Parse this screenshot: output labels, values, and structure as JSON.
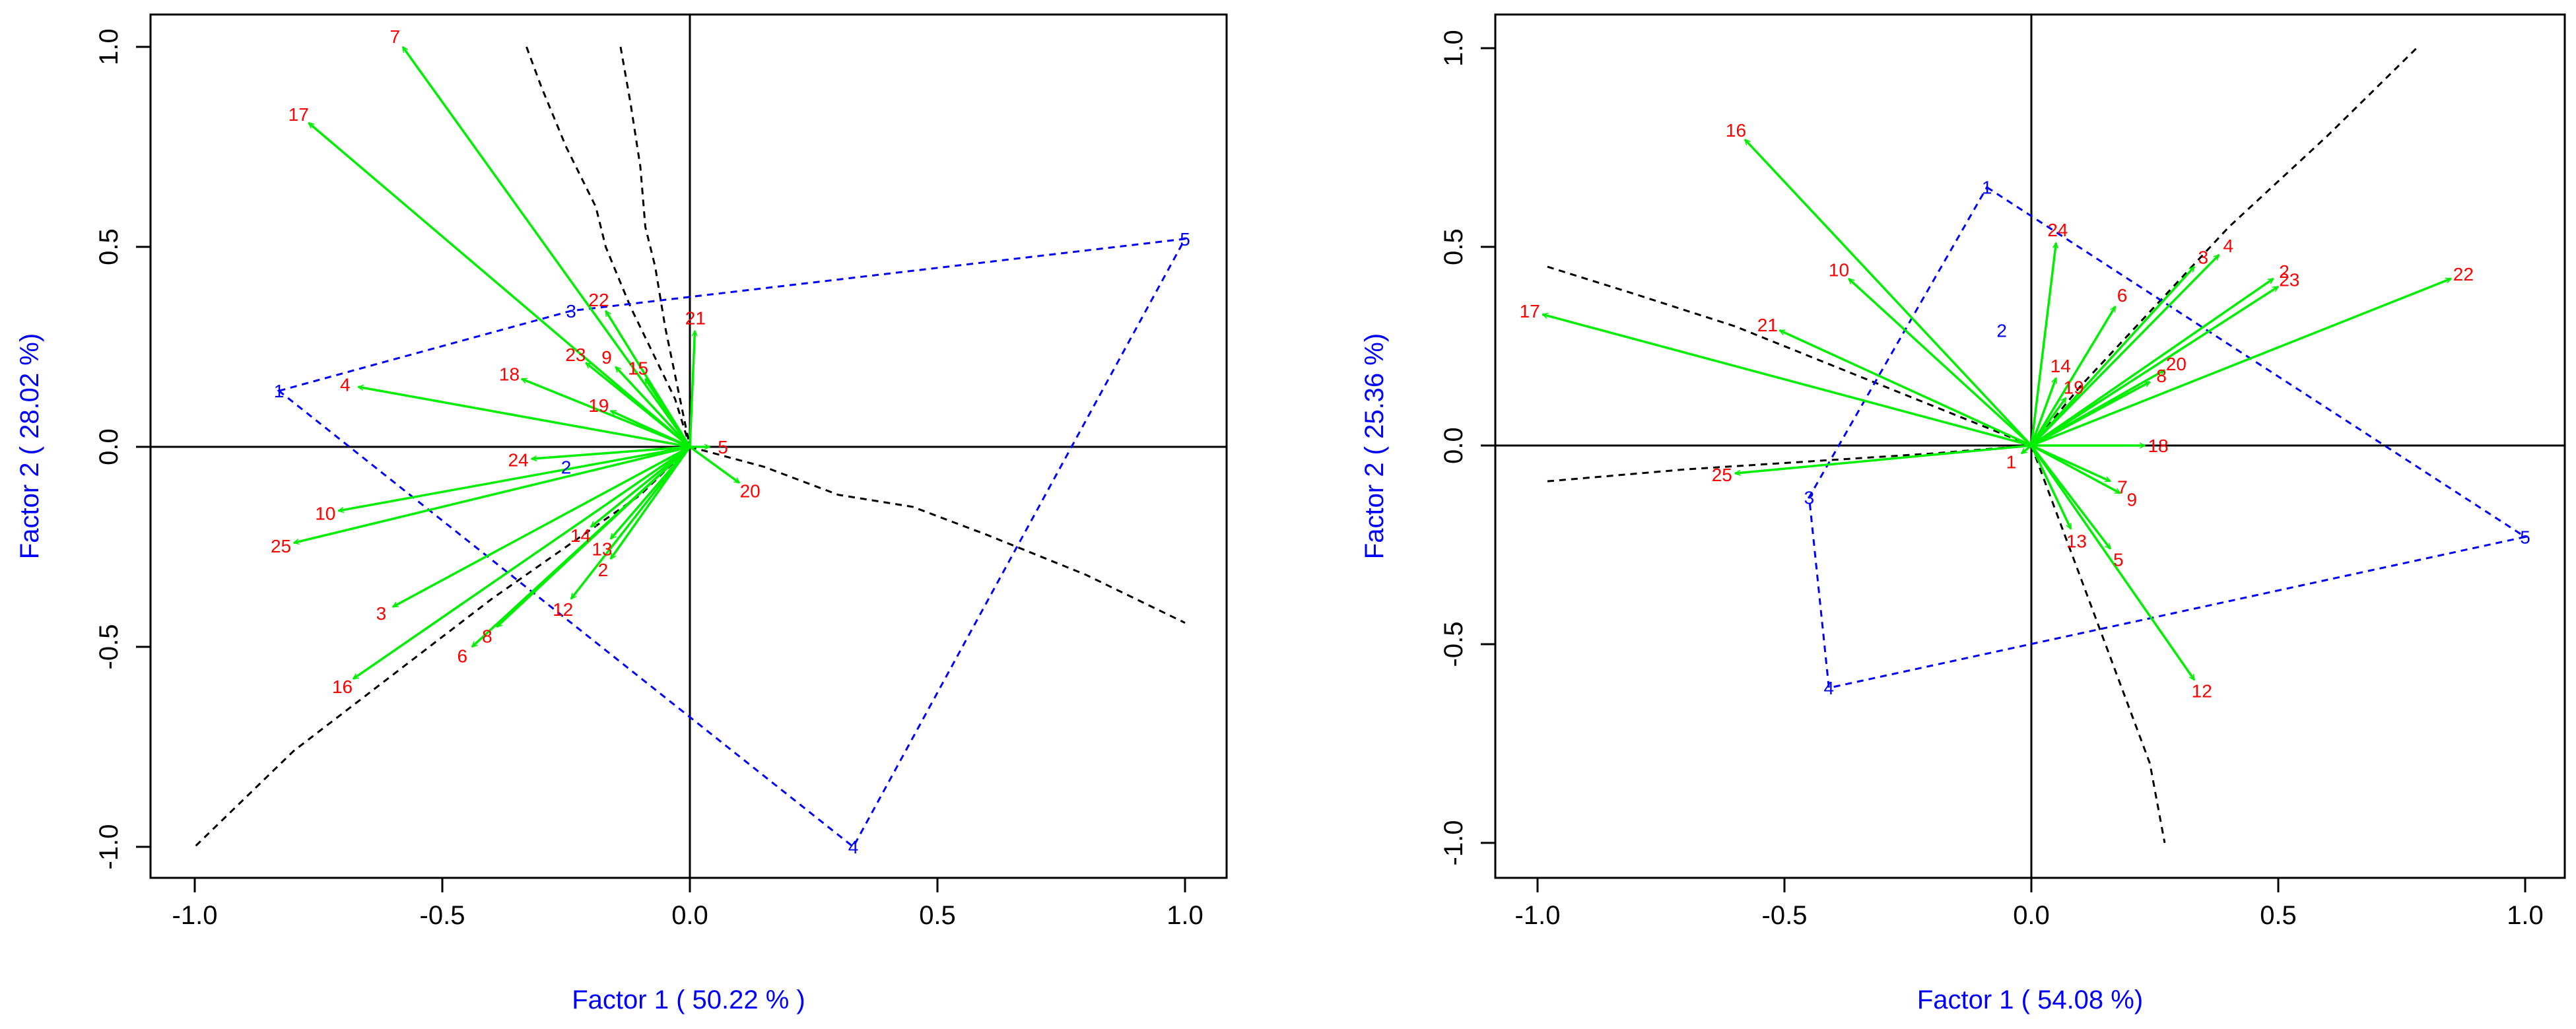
{
  "chart_data": [
    {
      "type": "scatter",
      "subtype": "biplot",
      "xlabel": "Factor 1 ( 50.22 % )",
      "ylabel": "Factor 2 ( 28.02 %)",
      "xlim": [
        -1.0,
        1.0
      ],
      "ylim": [
        -1.0,
        1.0
      ],
      "xticks": [
        "-1.0",
        "-0.5",
        "0.0",
        "0.5",
        "1.0"
      ],
      "yticks": [
        "-1.0",
        "-0.5",
        "0.0",
        "0.5",
        "1.0"
      ],
      "arrows": [
        {
          "label": "7",
          "x": -0.58,
          "y": 1.0
        },
        {
          "label": "17",
          "x": -0.77,
          "y": 0.81
        },
        {
          "label": "22",
          "x": -0.17,
          "y": 0.34
        },
        {
          "label": "23",
          "x": -0.21,
          "y": 0.21
        },
        {
          "label": "9",
          "x": -0.15,
          "y": 0.2
        },
        {
          "label": "15",
          "x": -0.09,
          "y": 0.17
        },
        {
          "label": "21",
          "x": 0.01,
          "y": 0.29
        },
        {
          "label": "18",
          "x": -0.34,
          "y": 0.17
        },
        {
          "label": "4",
          "x": -0.67,
          "y": 0.15
        },
        {
          "label": "19",
          "x": -0.16,
          "y": 0.09
        },
        {
          "label": "24",
          "x": -0.32,
          "y": -0.03
        },
        {
          "label": "5",
          "x": 0.04,
          "y": 0.0
        },
        {
          "label": "20",
          "x": 0.1,
          "y": -0.09
        },
        {
          "label": "10",
          "x": -0.71,
          "y": -0.16
        },
        {
          "label": "25",
          "x": -0.8,
          "y": -0.24
        },
        {
          "label": "14",
          "x": -0.2,
          "y": -0.2
        },
        {
          "label": "13",
          "x": -0.16,
          "y": -0.23
        },
        {
          "label": "2",
          "x": -0.16,
          "y": -0.28
        },
        {
          "label": "12",
          "x": -0.24,
          "y": -0.38
        },
        {
          "label": "3",
          "x": -0.6,
          "y": -0.4
        },
        {
          "label": "8",
          "x": -0.39,
          "y": -0.45
        },
        {
          "label": "6",
          "x": -0.44,
          "y": -0.5
        },
        {
          "label": "16",
          "x": -0.68,
          "y": -0.58
        }
      ],
      "sites": [
        {
          "label": "1",
          "x": -0.83,
          "y": 0.14
        },
        {
          "label": "3",
          "x": -0.24,
          "y": 0.34
        },
        {
          "label": "5",
          "x": 1.0,
          "y": 0.52
        },
        {
          "label": "4",
          "x": 0.33,
          "y": -1.0
        },
        {
          "label": "2",
          "x": -0.25,
          "y": -0.05
        }
      ],
      "hull": [
        "1",
        "3",
        "5",
        "4"
      ],
      "black_curves": [
        [
          [
            -0.33,
            1.0
          ],
          [
            -0.3,
            0.9
          ],
          [
            -0.25,
            0.75
          ],
          [
            -0.19,
            0.6
          ],
          [
            -0.17,
            0.5
          ],
          [
            -0.12,
            0.35
          ],
          [
            -0.03,
            0.12
          ],
          [
            0.0,
            0.0
          ]
        ],
        [
          [
            -0.14,
            1.0
          ],
          [
            -0.12,
            0.86
          ],
          [
            -0.1,
            0.7
          ],
          [
            -0.09,
            0.55
          ],
          [
            -0.07,
            0.45
          ],
          [
            -0.05,
            0.3
          ],
          [
            -0.02,
            0.12
          ],
          [
            0.0,
            0.0
          ]
        ],
        [
          [
            0.0,
            0.0
          ],
          [
            0.15,
            -0.05
          ],
          [
            0.3,
            -0.12
          ],
          [
            0.45,
            -0.15
          ],
          [
            0.6,
            -0.22
          ],
          [
            0.8,
            -0.32
          ],
          [
            1.0,
            -0.44
          ]
        ],
        [
          [
            0.0,
            0.0
          ],
          [
            -0.1,
            -0.12
          ],
          [
            -0.25,
            -0.25
          ],
          [
            -0.4,
            -0.38
          ],
          [
            -0.6,
            -0.57
          ],
          [
            -0.8,
            -0.76
          ],
          [
            -1.0,
            -1.0
          ]
        ]
      ]
    },
    {
      "type": "scatter",
      "subtype": "biplot",
      "xlabel": "Factor 1 ( 54.08 %)",
      "ylabel": "Factor 2 ( 25.36 %)",
      "xlim": [
        -1.0,
        1.0
      ],
      "ylim": [
        -1.0,
        1.0
      ],
      "xticks": [
        "-1.0",
        "-0.5",
        "0.0",
        "0.5",
        "1.0"
      ],
      "yticks": [
        "-1.0",
        "-0.5",
        "0.0",
        "0.5",
        "1.0"
      ],
      "arrows": [
        {
          "label": "16",
          "x": -0.58,
          "y": 0.77
        },
        {
          "label": "10",
          "x": -0.37,
          "y": 0.42
        },
        {
          "label": "21",
          "x": -0.51,
          "y": 0.29
        },
        {
          "label": "17",
          "x": -0.99,
          "y": 0.33
        },
        {
          "label": "25",
          "x": -0.6,
          "y": -0.07
        },
        {
          "label": "24",
          "x": 0.05,
          "y": 0.51
        },
        {
          "label": "4",
          "x": 0.38,
          "y": 0.48
        },
        {
          "label": "3",
          "x": 0.33,
          "y": 0.45
        },
        {
          "label": "2",
          "x": 0.49,
          "y": 0.42
        },
        {
          "label": "23",
          "x": 0.5,
          "y": 0.4
        },
        {
          "label": "6",
          "x": 0.17,
          "y": 0.35
        },
        {
          "label": "22",
          "x": 0.85,
          "y": 0.42
        },
        {
          "label": "20",
          "x": 0.27,
          "y": 0.19
        },
        {
          "label": "8",
          "x": 0.24,
          "y": 0.16
        },
        {
          "label": "14",
          "x": 0.05,
          "y": 0.17
        },
        {
          "label": "19",
          "x": 0.07,
          "y": 0.12
        },
        {
          "label": "18",
          "x": 0.23,
          "y": 0.0
        },
        {
          "label": "7",
          "x": 0.16,
          "y": -0.09
        },
        {
          "label": "9",
          "x": 0.18,
          "y": -0.12
        },
        {
          "label": "13",
          "x": 0.08,
          "y": -0.21
        },
        {
          "label": "5",
          "x": 0.16,
          "y": -0.26
        },
        {
          "label": "12",
          "x": 0.33,
          "y": -0.59
        },
        {
          "label": "1",
          "x": -0.02,
          "y": -0.02
        }
      ],
      "sites": [
        {
          "label": "1",
          "x": -0.09,
          "y": 0.65
        },
        {
          "label": "2",
          "x": -0.06,
          "y": 0.29
        },
        {
          "label": "3",
          "x": -0.45,
          "y": -0.13
        },
        {
          "label": "4",
          "x": -0.41,
          "y": -0.61
        },
        {
          "label": "5",
          "x": 1.0,
          "y": -0.23
        }
      ],
      "hull": [
        "1",
        "5",
        "4",
        "3"
      ],
      "black_curves": [
        [
          [
            0.0,
            0.0
          ],
          [
            0.1,
            0.15
          ],
          [
            0.25,
            0.35
          ],
          [
            0.4,
            0.55
          ],
          [
            0.6,
            0.78
          ],
          [
            0.78,
            1.0
          ]
        ],
        [
          [
            -0.98,
            0.45
          ],
          [
            -0.8,
            0.38
          ],
          [
            -0.6,
            0.3
          ],
          [
            -0.4,
            0.2
          ],
          [
            -0.2,
            0.1
          ],
          [
            0.0,
            0.0
          ]
        ],
        [
          [
            -0.98,
            -0.09
          ],
          [
            -0.7,
            -0.06
          ],
          [
            -0.45,
            -0.04
          ],
          [
            -0.2,
            -0.02
          ],
          [
            0.0,
            0.0
          ]
        ],
        [
          [
            0.0,
            0.0
          ],
          [
            0.06,
            -0.2
          ],
          [
            0.12,
            -0.4
          ],
          [
            0.18,
            -0.6
          ],
          [
            0.24,
            -0.8
          ],
          [
            0.27,
            -1.0
          ]
        ]
      ]
    }
  ]
}
